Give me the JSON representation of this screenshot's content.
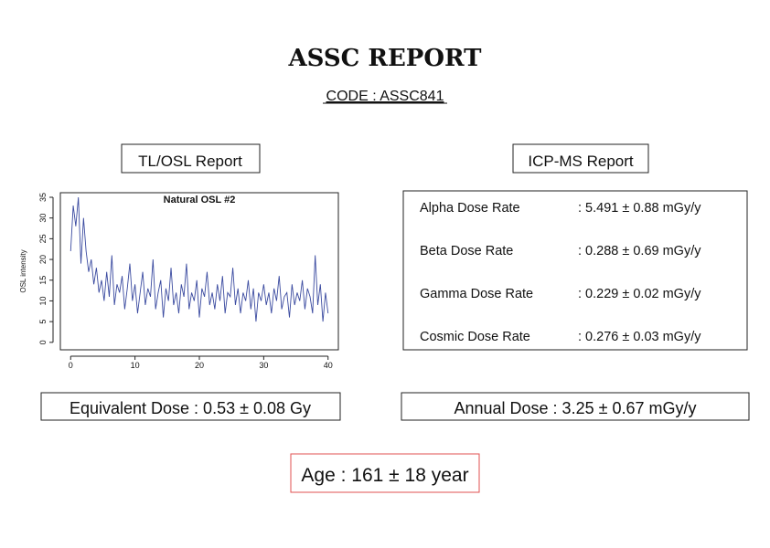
{
  "header": {
    "title": "ASSC REPORT",
    "code": "CODE : ASSC841"
  },
  "left": {
    "heading": "TL/OSL Report",
    "result": "Equivalent Dose : 0.53 ± 0.08 Gy"
  },
  "chart_data": {
    "type": "line",
    "title": "Natural OSL #2",
    "y_label": "OSL intensity",
    "color": "#3b4ba0",
    "x": [
      0,
      0.4,
      0.8,
      1.2,
      1.6,
      2,
      2.4,
      2.8,
      3.2,
      3.6,
      4,
      4.4,
      4.8,
      5.2,
      5.6,
      6,
      6.4,
      6.8,
      7.2,
      7.6,
      8,
      8.4,
      8.8,
      9.2,
      9.6,
      10,
      10.4,
      10.8,
      11.2,
      11.6,
      12,
      12.4,
      12.8,
      13.2,
      13.6,
      14,
      14.4,
      14.8,
      15.2,
      15.6,
      16,
      16.4,
      16.8,
      17.2,
      17.6,
      18,
      18.4,
      18.8,
      19.2,
      19.6,
      20,
      20.4,
      20.8,
      21.2,
      21.6,
      22,
      22.4,
      22.8,
      23.2,
      23.6,
      24,
      24.4,
      24.8,
      25.2,
      25.6,
      26,
      26.4,
      26.8,
      27.2,
      27.6,
      28,
      28.4,
      28.8,
      29.2,
      29.6,
      30,
      30.4,
      30.8,
      31.2,
      31.6,
      32,
      32.4,
      32.8,
      33.2,
      33.6,
      34,
      34.4,
      34.8,
      35.2,
      35.6,
      36,
      36.4,
      36.8,
      37.2,
      37.6,
      38,
      38.4,
      38.8,
      39.2,
      39.6,
      40
    ],
    "values": [
      22,
      33,
      28,
      35,
      19,
      30,
      22,
      17,
      20,
      14,
      18,
      12,
      15,
      10,
      17,
      11,
      21,
      9,
      14,
      12,
      16,
      8,
      13,
      19,
      10,
      14,
      7,
      12,
      17,
      9,
      13,
      11,
      20,
      8,
      12,
      15,
      6,
      13,
      10,
      18,
      9,
      12,
      7,
      14,
      11,
      19,
      8,
      12,
      10,
      15,
      6,
      13,
      11,
      17,
      9,
      12,
      8,
      14,
      10,
      16,
      7,
      12,
      11,
      18,
      9,
      13,
      7,
      12,
      10,
      15,
      8,
      13,
      5,
      12,
      10,
      14,
      9,
      12,
      7,
      13,
      10,
      16,
      8,
      11,
      12,
      6,
      14,
      9,
      12,
      10,
      15,
      8,
      13,
      11,
      7,
      21,
      9,
      14,
      5,
      12,
      7
    ],
    "xlim": [
      -1.6,
      41.6
    ],
    "ylim": [
      -1.8,
      36.1
    ],
    "xticks": [
      0,
      10,
      20,
      30,
      40
    ],
    "yticks": [
      0,
      5,
      10,
      15,
      20,
      25,
      30,
      35
    ]
  },
  "right": {
    "heading": "ICP-MS Report",
    "rows": [
      [
        "Alpha Dose Rate",
        ": 5.491 ± 0.88 mGy/y"
      ],
      [
        "Beta Dose Rate",
        ": 0.288 ± 0.69 mGy/y"
      ],
      [
        "Gamma Dose Rate",
        ": 0.229 ± 0.02 mGy/y"
      ],
      [
        "Cosmic Dose Rate",
        ": 0.276 ± 0.03 mGy/y"
      ]
    ],
    "result": "Annual Dose : 3.25 ± 0.67 mGy/y"
  },
  "age": "Age : 161 ± 18 year"
}
